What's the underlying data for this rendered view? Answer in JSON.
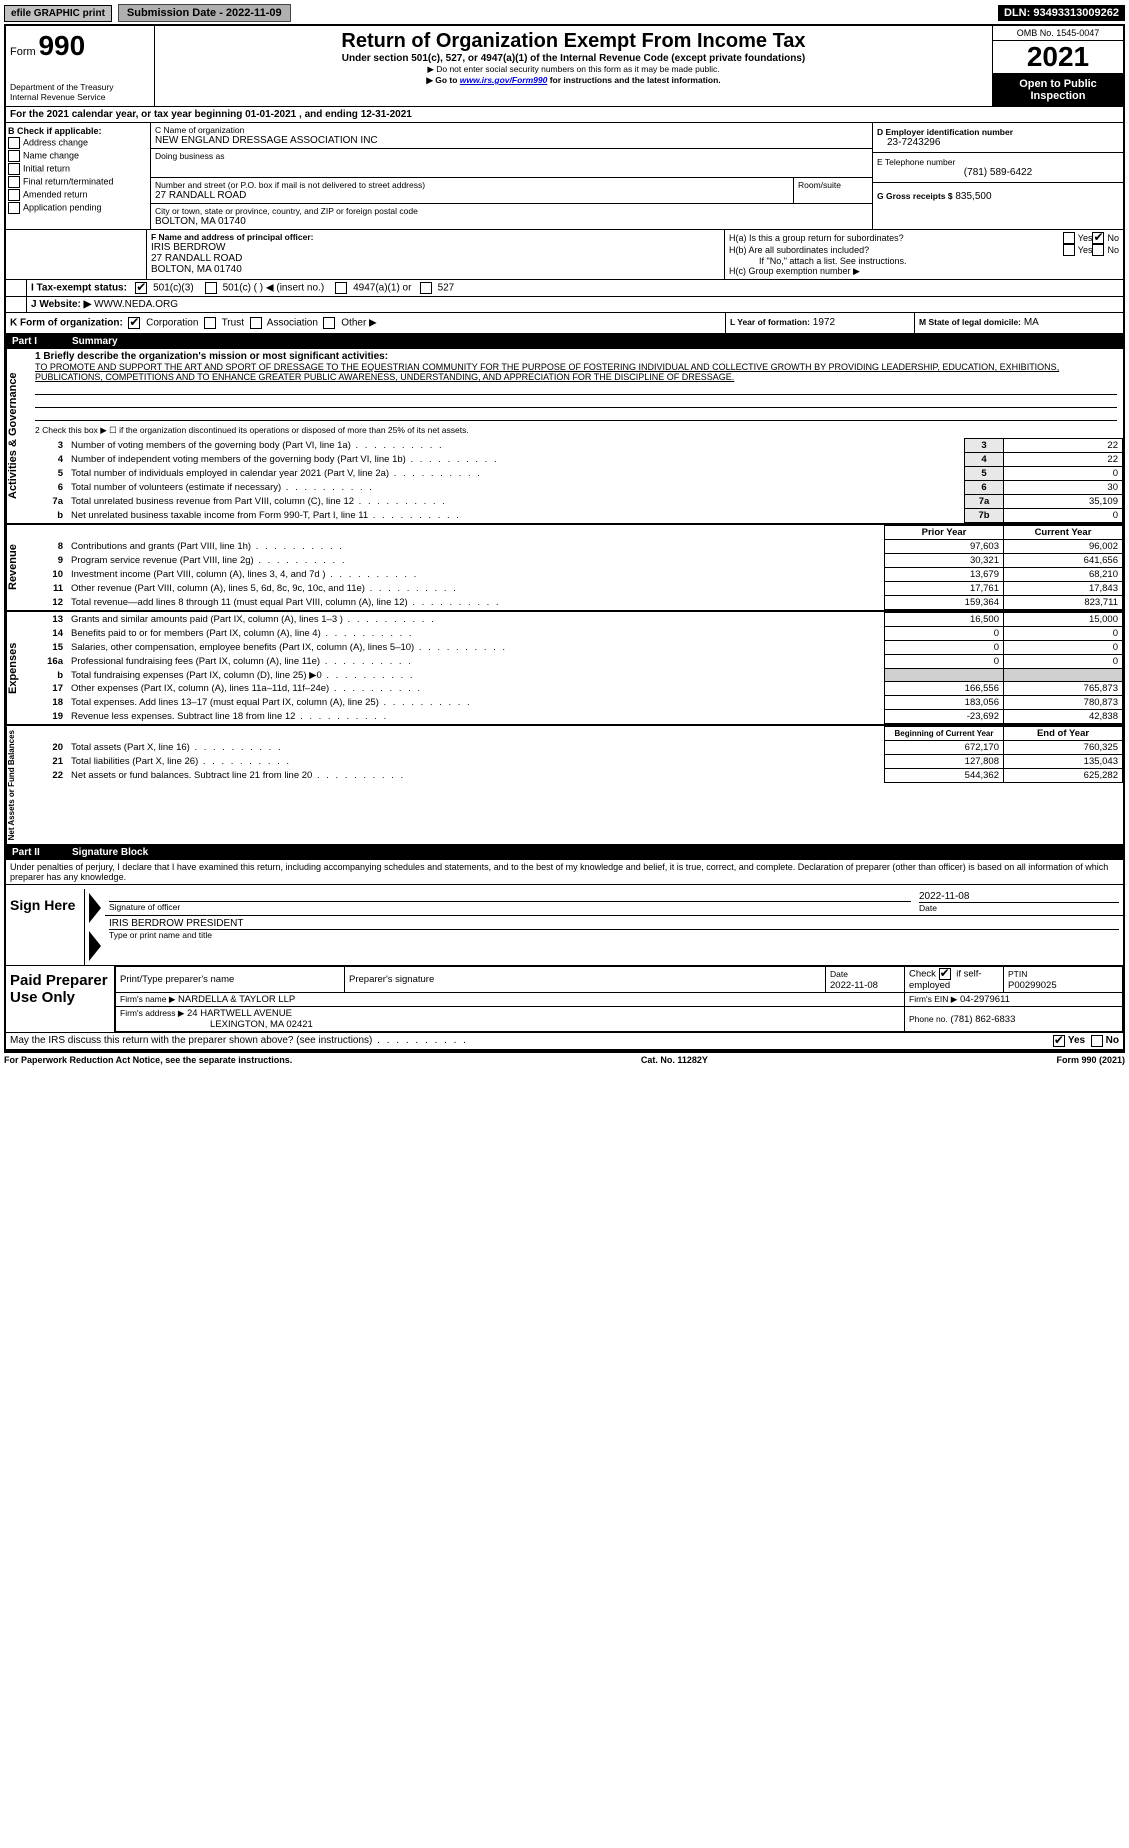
{
  "topbar": {
    "efile": "efile GRAPHIC print",
    "submission_label": "Submission Date - 2022-11-09",
    "dln": "DLN: 93493313009262"
  },
  "header": {
    "form_prefix": "Form",
    "form_number": "990",
    "dept": "Department of the Treasury",
    "irs": "Internal Revenue Service",
    "title": "Return of Organization Exempt From Income Tax",
    "subtitle": "Under section 501(c), 527, or 4947(a)(1) of the Internal Revenue Code (except private foundations)",
    "note1": "▶ Do not enter social security numbers on this form as it may be made public.",
    "note2_pre": "▶ Go to ",
    "note2_link": "www.irs.gov/Form990",
    "note2_post": " for instructions and the latest information.",
    "omb": "OMB No. 1545-0047",
    "year": "2021",
    "open": "Open to Public Inspection"
  },
  "line_a": "For the 2021 calendar year, or tax year beginning 01-01-2021    , and ending 12-31-2021",
  "section_b": {
    "label": "B Check if applicable:",
    "items": [
      "Address change",
      "Name change",
      "Initial return",
      "Final return/terminated",
      "Amended return",
      "Application pending"
    ]
  },
  "section_c": {
    "name_label": "C Name of organization",
    "name": "NEW ENGLAND DRESSAGE ASSOCIATION INC",
    "dba_label": "Doing business as",
    "dba": "",
    "street_label": "Number and street (or P.O. box if mail is not delivered to street address)",
    "room_label": "Room/suite",
    "street": "27 RANDALL ROAD",
    "city_label": "City or town, state or province, country, and ZIP or foreign postal code",
    "city": "BOLTON, MA  01740"
  },
  "section_d": {
    "label": "D Employer identification number",
    "value": "23-7243296"
  },
  "section_e": {
    "label": "E Telephone number",
    "value": "(781) 589-6422"
  },
  "section_g": {
    "label": "G Gross receipts $",
    "value": "835,500"
  },
  "section_f": {
    "label": "F Name and address of principal officer:",
    "name": "IRIS BERDROW",
    "addr1": "27 RANDALL ROAD",
    "addr2": "BOLTON, MA  01740"
  },
  "section_h": {
    "a_label": "H(a)  Is this a group return for subordinates?",
    "b_label": "H(b)  Are all subordinates included?",
    "b_note": "If \"No,\" attach a list. See instructions.",
    "c_label": "H(c)  Group exemption number ▶",
    "yes": "Yes",
    "no": "No"
  },
  "section_i": {
    "label": "I  Tax-exempt status:",
    "o1": "501(c)(3)",
    "o2": "501(c) (   ) ◀ (insert no.)",
    "o3": "4947(a)(1) or",
    "o4": "527"
  },
  "section_j": {
    "label": "J  Website: ▶",
    "value": "WWW.NEDA.ORG"
  },
  "section_k": {
    "label": "K Form of organization:",
    "o1": "Corporation",
    "o2": "Trust",
    "o3": "Association",
    "o4": "Other ▶"
  },
  "section_l": {
    "label": "L Year of formation:",
    "value": "1972"
  },
  "section_m": {
    "label": "M State of legal domicile:",
    "value": "MA"
  },
  "part1": {
    "title": "Part I",
    "name": "Summary"
  },
  "governance": {
    "label": "Activities & Governance",
    "l1": "1  Briefly describe the organization's mission or most significant activities:",
    "mission": "TO PROMOTE AND SUPPORT THE ART AND SPORT OF DRESSAGE TO THE EQUESTRIAN COMMUNITY FOR THE PURPOSE OF FOSTERING INDIVIDUAL AND COLLECTIVE GROWTH BY PROVIDING LEADERSHIP, EDUCATION, EXHIBITIONS, PUBLICATIONS, COMPETITIONS AND TO ENHANCE GREATER PUBLIC AWARENESS, UNDERSTANDING, AND APPRECIATION FOR THE DISCIPLINE OF DRESSAGE.",
    "l2": "2    Check this box ▶ ☐ if the organization discontinued its operations or disposed of more than 25% of its net assets.",
    "rows": [
      {
        "n": "3",
        "t": "Number of voting members of the governing body (Part VI, line 1a)",
        "b": "3",
        "v": "22"
      },
      {
        "n": "4",
        "t": "Number of independent voting members of the governing body (Part VI, line 1b)",
        "b": "4",
        "v": "22"
      },
      {
        "n": "5",
        "t": "Total number of individuals employed in calendar year 2021 (Part V, line 2a)",
        "b": "5",
        "v": "0"
      },
      {
        "n": "6",
        "t": "Total number of volunteers (estimate if necessary)",
        "b": "6",
        "v": "30"
      },
      {
        "n": "7a",
        "t": "Total unrelated business revenue from Part VIII, column (C), line 12",
        "b": "7a",
        "v": "35,109"
      },
      {
        "n": "b",
        "t": "Net unrelated business taxable income from Form 990-T, Part I, line 11",
        "b": "7b",
        "v": "0"
      }
    ]
  },
  "cols": {
    "prior": "Prior Year",
    "current": "Current Year",
    "boy": "Beginning of Current Year",
    "eoy": "End of Year"
  },
  "revenue": {
    "label": "Revenue",
    "rows": [
      {
        "n": "8",
        "t": "Contributions and grants (Part VIII, line 1h)",
        "p": "97,603",
        "c": "96,002"
      },
      {
        "n": "9",
        "t": "Program service revenue (Part VIII, line 2g)",
        "p": "30,321",
        "c": "641,656"
      },
      {
        "n": "10",
        "t": "Investment income (Part VIII, column (A), lines 3, 4, and 7d )",
        "p": "13,679",
        "c": "68,210"
      },
      {
        "n": "11",
        "t": "Other revenue (Part VIII, column (A), lines 5, 6d, 8c, 9c, 10c, and 11e)",
        "p": "17,761",
        "c": "17,843"
      },
      {
        "n": "12",
        "t": "Total revenue—add lines 8 through 11 (must equal Part VIII, column (A), line 12)",
        "p": "159,364",
        "c": "823,711"
      }
    ]
  },
  "expenses": {
    "label": "Expenses",
    "rows": [
      {
        "n": "13",
        "t": "Grants and similar amounts paid (Part IX, column (A), lines 1–3 )",
        "p": "16,500",
        "c": "15,000"
      },
      {
        "n": "14",
        "t": "Benefits paid to or for members (Part IX, column (A), line 4)",
        "p": "0",
        "c": "0"
      },
      {
        "n": "15",
        "t": "Salaries, other compensation, employee benefits (Part IX, column (A), lines 5–10)",
        "p": "0",
        "c": "0"
      },
      {
        "n": "16a",
        "t": "Professional fundraising fees (Part IX, column (A), line 11e)",
        "p": "0",
        "c": "0"
      },
      {
        "n": "b",
        "t": "Total fundraising expenses (Part IX, column (D), line 25) ▶0",
        "p": "",
        "c": "",
        "gray": true
      },
      {
        "n": "17",
        "t": "Other expenses (Part IX, column (A), lines 11a–11d, 11f–24e)",
        "p": "166,556",
        "c": "765,873"
      },
      {
        "n": "18",
        "t": "Total expenses. Add lines 13–17 (must equal Part IX, column (A), line 25)",
        "p": "183,056",
        "c": "780,873"
      },
      {
        "n": "19",
        "t": "Revenue less expenses. Subtract line 18 from line 12",
        "p": "-23,692",
        "c": "42,838"
      }
    ]
  },
  "netassets": {
    "label": "Net Assets or Fund Balances",
    "rows": [
      {
        "n": "20",
        "t": "Total assets (Part X, line 16)",
        "p": "672,170",
        "c": "760,325"
      },
      {
        "n": "21",
        "t": "Total liabilities (Part X, line 26)",
        "p": "127,808",
        "c": "135,043"
      },
      {
        "n": "22",
        "t": "Net assets or fund balances. Subtract line 21 from line 20",
        "p": "544,362",
        "c": "625,282"
      }
    ]
  },
  "part2": {
    "title": "Part II",
    "name": "Signature Block",
    "decl": "Under penalties of perjury, I declare that I have examined this return, including accompanying schedules and statements, and to the best of my knowledge and belief, it is true, correct, and complete. Declaration of preparer (other than officer) is based on all information of which preparer has any knowledge."
  },
  "sign": {
    "label": "Sign Here",
    "sig_label": "Signature of officer",
    "date_label": "Date",
    "date": "2022-11-08",
    "name": "IRIS BERDROW  PRESIDENT",
    "name_label": "Type or print name and title"
  },
  "preparer": {
    "label": "Paid Preparer Use Only",
    "h1": "Print/Type preparer's name",
    "h2": "Preparer's signature",
    "h3": "Date",
    "h4_pre": "Check",
    "h4_post": "if self-employed",
    "h5": "PTIN",
    "date": "2022-11-08",
    "ptin": "P00299025",
    "firm_name_label": "Firm's name    ▶",
    "firm_name": "NARDELLA & TAYLOR LLP",
    "firm_ein_label": "Firm's EIN ▶",
    "firm_ein": "04-2979611",
    "firm_addr_label": "Firm's address ▶",
    "firm_addr1": "24 HARTWELL AVENUE",
    "firm_addr2": "LEXINGTON, MA  02421",
    "phone_label": "Phone no.",
    "phone": "(781) 862-6833"
  },
  "bottom": {
    "q": "May the IRS discuss this return with the preparer shown above? (see instructions)",
    "yes": "Yes",
    "no": "No"
  },
  "footer": {
    "left": "For Paperwork Reduction Act Notice, see the separate instructions.",
    "mid": "Cat. No. 11282Y",
    "right": "Form 990 (2021)"
  }
}
